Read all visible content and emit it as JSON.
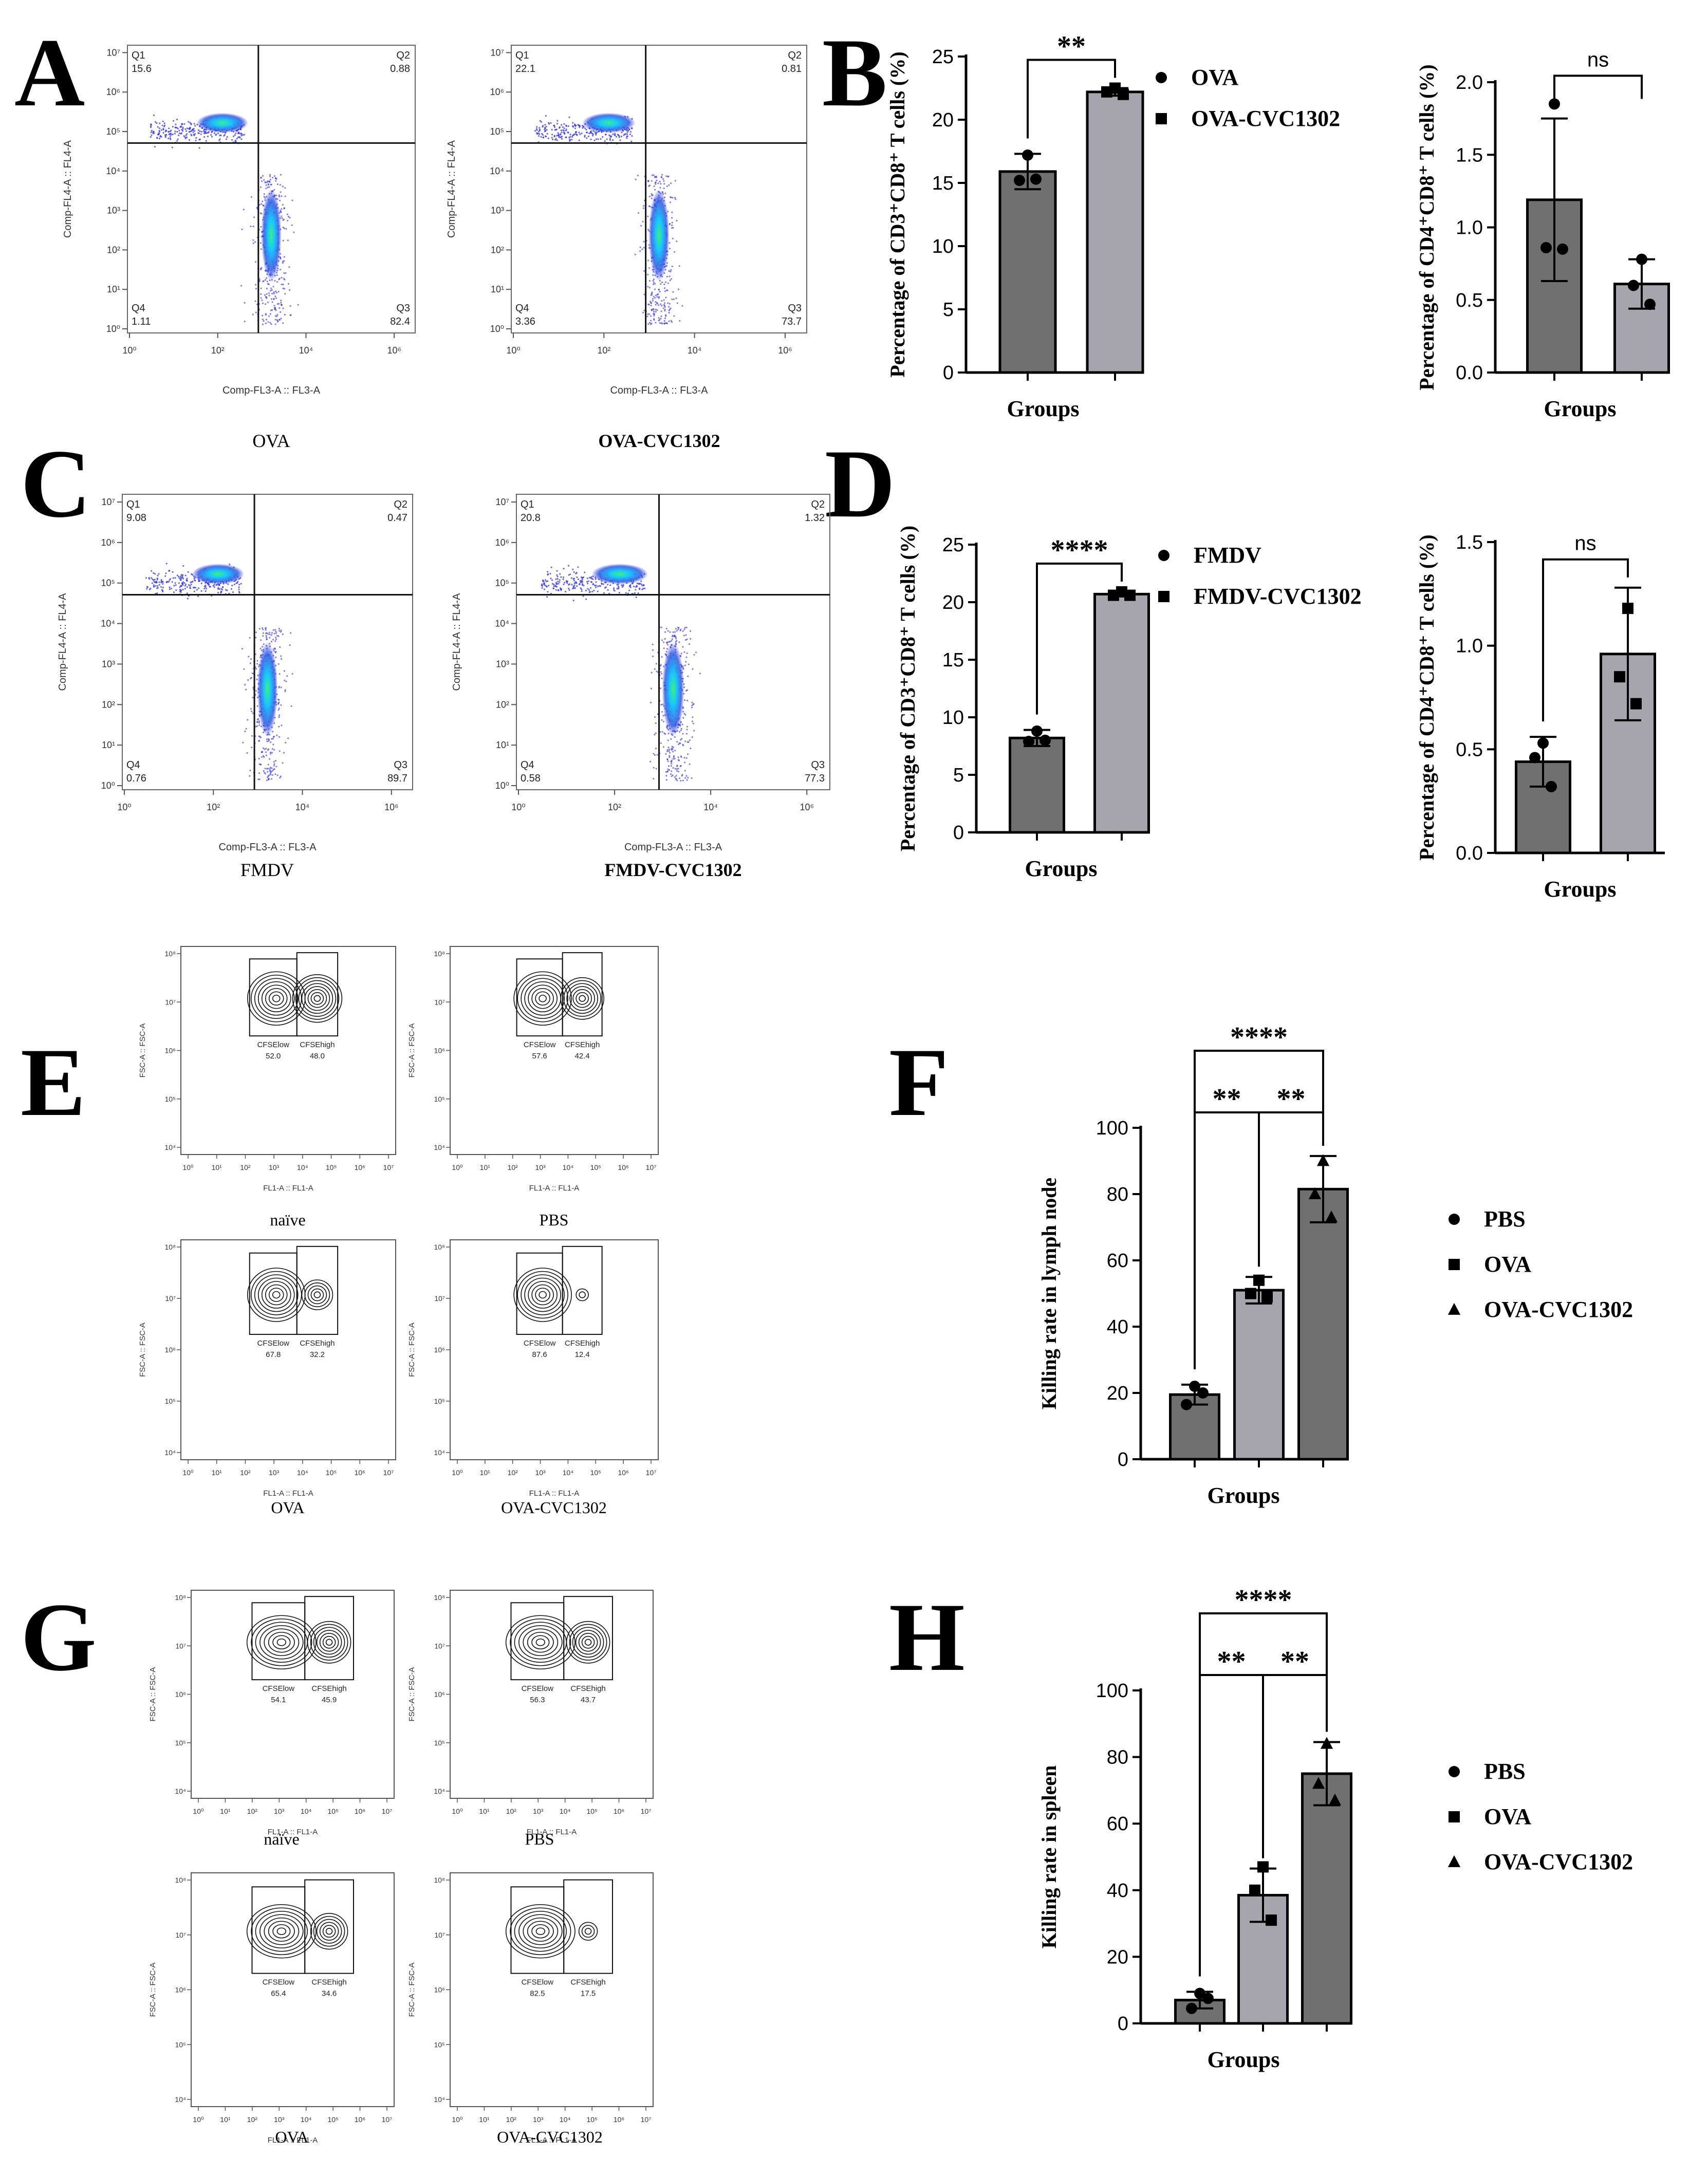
{
  "panel_letters": {
    "A": "A",
    "B": "B",
    "C": "C",
    "D": "D",
    "E": "E",
    "F": "F",
    "G": "G",
    "H": "H"
  },
  "colors": {
    "bar_dark": "#707070",
    "bar_light": "#a6a5ad",
    "text": "#000000",
    "density_low": "#2b2bd6",
    "density_mid": "#19c6ff",
    "density_high": "#2ee07a",
    "contour": "#111111"
  },
  "flow_quadrant": [
    {
      "id": "A1",
      "title": "OVA",
      "xlabel": "Comp-FL3-A :: FL3-A",
      "ylabel": "Comp-FL4-A :: FL4-A",
      "q": {
        "Q1": "15.6",
        "Q2": "0.88",
        "Q3": "82.4",
        "Q4": "1.11"
      },
      "qlabels": {
        "Q1": "Q1",
        "Q2": "Q2",
        "Q3": "Q3",
        "Q4": "Q4"
      },
      "xticks": [
        "10⁰",
        "10²",
        "10⁴",
        "10⁶"
      ],
      "yticks": [
        "10⁰",
        "10¹",
        "10²",
        "10³",
        "10⁴",
        "10⁵",
        "10⁶",
        "10⁷"
      ]
    },
    {
      "id": "A2",
      "title": "OVA-CVC1302",
      "xlabel": "Comp-FL3-A :: FL3-A",
      "ylabel": "Comp-FL4-A :: FL4-A",
      "q": {
        "Q1": "22.1",
        "Q2": "0.81",
        "Q3": "73.7",
        "Q4": "3.36"
      },
      "qlabels": {
        "Q1": "Q1",
        "Q2": "Q2",
        "Q3": "Q3",
        "Q4": "Q4"
      },
      "xticks": [
        "10⁰",
        "10²",
        "10⁴",
        "10⁶"
      ],
      "yticks": [
        "10⁰",
        "10¹",
        "10²",
        "10³",
        "10⁴",
        "10⁵",
        "10⁶",
        "10⁷"
      ]
    },
    {
      "id": "C1",
      "title": "FMDV",
      "xlabel": "Comp-FL3-A :: FL3-A",
      "ylabel": "Comp-FL4-A :: FL4-A",
      "q": {
        "Q1": "9.08",
        "Q2": "0.47",
        "Q3": "89.7",
        "Q4": "0.76"
      },
      "qlabels": {
        "Q1": "Q1",
        "Q2": "Q2",
        "Q3": "Q3",
        "Q4": "Q4"
      },
      "xticks": [
        "10⁰",
        "10²",
        "10⁴",
        "10⁶"
      ],
      "yticks": [
        "10⁰",
        "10¹",
        "10²",
        "10³",
        "10⁴",
        "10⁵",
        "10⁶",
        "10⁷"
      ]
    },
    {
      "id": "C2",
      "title": "FMDV-CVC1302",
      "xlabel": "Comp-FL3-A :: FL3-A",
      "ylabel": "Comp-FL4-A :: FL4-A",
      "q": {
        "Q1": "20.8",
        "Q2": "1.32",
        "Q3": "77.3",
        "Q4": "0.58"
      },
      "qlabels": {
        "Q1": "Q1",
        "Q2": "Q2",
        "Q3": "Q3",
        "Q4": "Q4"
      },
      "xticks": [
        "10⁰",
        "10²",
        "10⁴",
        "10⁶"
      ],
      "yticks": [
        "10⁰",
        "10¹",
        "10²",
        "10³",
        "10⁴",
        "10⁵",
        "10⁶",
        "10⁷"
      ]
    }
  ],
  "flow_cfse": [
    {
      "id": "E1",
      "title": "naïve",
      "xlabel": "FL1-A :: FL1-A",
      "ylabel": "FSC-A :: FSC-A",
      "low_label": "CFSElow",
      "high_label": "CFSEhigh",
      "low": "52.0",
      "high": "48.0"
    },
    {
      "id": "E2",
      "title": "PBS",
      "xlabel": "FL1-A :: FL1-A",
      "ylabel": "FSC-A :: FSC-A",
      "low_label": "CFSElow",
      "high_label": "CFSEhigh",
      "low": "57.6",
      "high": "42.4"
    },
    {
      "id": "E3",
      "title": "OVA",
      "xlabel": "FL1-A :: FL1-A",
      "ylabel": "FSC-A :: FSC-A",
      "low_label": "CFSElow",
      "high_label": "CFSEhigh",
      "low": "67.8",
      "high": "32.2"
    },
    {
      "id": "E4",
      "title": "OVA-CVC1302",
      "xlabel": "FL1-A :: FL1-A",
      "ylabel": "FSC-A :: FSC-A",
      "low_label": "CFSElow",
      "high_label": "CFSEhigh",
      "low": "87.6",
      "high": "12.4"
    },
    {
      "id": "G1",
      "title": "naïve",
      "xlabel": "FL1-A :: FL1-A",
      "ylabel": "FSC-A :: FSC-A",
      "low_label": "CFSElow",
      "high_label": "CFSEhigh",
      "low": "54.1",
      "high": "45.9"
    },
    {
      "id": "G2",
      "title": "PBS",
      "xlabel": "FL1-A :: FL1-A",
      "ylabel": "FSC-A :: FSC-A",
      "low_label": "CFSElow",
      "high_label": "CFSEhigh",
      "low": "56.3",
      "high": "43.7"
    },
    {
      "id": "G3",
      "title": "OVA",
      "xlabel": "FL1-A :: FL1-A",
      "ylabel": "FSC-A :: FSC-A",
      "low_label": "CFSElow",
      "high_label": "CFSEhigh",
      "low": "65.4",
      "high": "34.6"
    },
    {
      "id": "G4",
      "title": "OVA-CVC1302",
      "xlabel": "FL1-A :: FL1-A",
      "ylabel": "FSC-A :: FSC-A",
      "low_label": "CFSElow",
      "high_label": "CFSEhigh",
      "low": "82.5",
      "high": "17.5"
    }
  ],
  "cfse_ticks": {
    "x": [
      "10⁰",
      "10¹",
      "10²",
      "10³",
      "10⁴",
      "10⁵",
      "10⁶",
      "10⁷"
    ],
    "y": [
      "10⁴",
      "10⁵",
      "10⁶",
      "10⁷",
      "10⁸"
    ]
  },
  "chart_data": [
    {
      "id": "B1",
      "type": "bar",
      "title": "",
      "xlabel": "Groups",
      "ylabel": "Percentage of CD3⁺CD8⁺ T cells (%)",
      "ylim": [
        0,
        25
      ],
      "yticks": [
        0,
        5,
        10,
        15,
        20,
        25
      ],
      "yticklabels": [
        "0",
        "5",
        "10",
        "15",
        "20",
        "25"
      ],
      "categories": [
        "OVA",
        "OVA-CVC1302"
      ],
      "values": [
        15.9,
        22.2
      ],
      "errors": [
        1.4,
        0.3
      ],
      "points": [
        [
          17.2,
          15.2,
          15.3
        ],
        [
          22.5,
          22.2,
          22.0
        ]
      ],
      "markers": [
        "circle",
        "square"
      ],
      "annotations": [
        {
          "from": 0,
          "to": 1,
          "text": "**"
        }
      ],
      "legend": [
        "OVA",
        "OVA-CVC1302"
      ]
    },
    {
      "id": "B2",
      "type": "bar",
      "title": "",
      "xlabel": "Groups",
      "ylabel": "Percentage of CD4⁺CD8⁺ T cells (%)",
      "ylim": [
        0,
        2
      ],
      "yticks": [
        0,
        0.5,
        1,
        1.5,
        2
      ],
      "yticklabels": [
        "0.0",
        "0.5",
        "1.0",
        "1.5",
        "2.0"
      ],
      "categories": [
        "OVA",
        "OVA-CVC1302"
      ],
      "values": [
        1.19,
        0.61
      ],
      "errors": [
        0.56,
        0.17
      ],
      "points": [
        [
          1.85,
          0.86,
          0.85
        ],
        [
          0.78,
          0.6,
          0.47
        ]
      ],
      "markers": [
        "circle",
        "circle"
      ],
      "annotations": [
        {
          "from": 0,
          "to": 1,
          "text": "ns"
        }
      ]
    },
    {
      "id": "D1",
      "type": "bar",
      "title": "",
      "xlabel": "Groups",
      "ylabel": "Percentage of CD3⁺CD8⁺ T cells (%)",
      "ylim": [
        0,
        25
      ],
      "yticks": [
        0,
        5,
        10,
        15,
        20,
        25
      ],
      "yticklabels": [
        "0",
        "5",
        "10",
        "15",
        "20",
        "25"
      ],
      "categories": [
        "FMDV",
        "FMDV-CVC1302"
      ],
      "values": [
        8.2,
        20.7
      ],
      "errors": [
        0.7,
        0.2
      ],
      "points": [
        [
          8.8,
          7.9,
          8.0
        ],
        [
          20.9,
          20.6,
          20.6
        ]
      ],
      "markers": [
        "circle",
        "square"
      ],
      "annotations": [
        {
          "from": 0,
          "to": 1,
          "text": "****"
        }
      ],
      "legend": [
        "FMDV",
        "FMDV-CVC1302"
      ]
    },
    {
      "id": "D2",
      "type": "bar",
      "title": "",
      "xlabel": "Groups",
      "ylabel": "Percentage of CD4⁺CD8⁺ T cells (%)",
      "ylim": [
        0,
        1.5
      ],
      "yticks": [
        0,
        0.5,
        1,
        1.5
      ],
      "yticklabels": [
        "0.0",
        "0.5",
        "1.0",
        "1.5"
      ],
      "categories": [
        "FMDV",
        "FMDV-CVC1302"
      ],
      "values": [
        0.44,
        0.96
      ],
      "errors": [
        0.12,
        0.32
      ],
      "points": [
        [
          0.53,
          0.46,
          0.32
        ],
        [
          1.18,
          0.85,
          0.72
        ]
      ],
      "markers": [
        "circle",
        "square"
      ],
      "annotations": [
        {
          "from": 0,
          "to": 1,
          "text": "ns"
        }
      ]
    },
    {
      "id": "F",
      "type": "bar",
      "title": "",
      "xlabel": "Groups",
      "ylabel": "Killing rate in lymph node",
      "ylim": [
        0,
        100
      ],
      "yticks": [
        0,
        20,
        40,
        60,
        80,
        100
      ],
      "yticklabels": [
        "0",
        "20",
        "40",
        "60",
        "80",
        "100"
      ],
      "categories": [
        "PBS",
        "OVA",
        "OVA-CVC1302"
      ],
      "values": [
        19.5,
        51,
        81.5
      ],
      "errors": [
        3,
        4,
        10
      ],
      "points": [
        [
          22,
          16.5,
          20
        ],
        [
          54,
          50,
          49
        ],
        [
          90,
          80,
          73
        ]
      ],
      "markers": [
        "circle",
        "square",
        "triangle"
      ],
      "annotations": [
        {
          "from": 0,
          "to": 1,
          "text": "**"
        },
        {
          "from": 1,
          "to": 2,
          "text": "**"
        },
        {
          "from": 0,
          "to": 2,
          "text": "****"
        }
      ],
      "legend": [
        "PBS",
        "OVA",
        "OVA-CVC1302"
      ]
    },
    {
      "id": "H",
      "type": "bar",
      "title": "",
      "xlabel": "Groups",
      "ylabel": "Killing rate in spleen",
      "ylim": [
        0,
        100
      ],
      "yticks": [
        0,
        20,
        40,
        60,
        80,
        100
      ],
      "yticklabels": [
        "0",
        "20",
        "40",
        "60",
        "80",
        "100"
      ],
      "categories": [
        "PBS",
        "OVA",
        "OVA-CVC1302"
      ],
      "values": [
        7,
        38.5,
        75
      ],
      "errors": [
        2.5,
        8,
        9.5
      ],
      "points": [
        [
          9,
          4.5,
          7.5
        ],
        [
          47,
          40,
          31
        ],
        [
          84,
          72,
          67
        ]
      ],
      "markers": [
        "circle",
        "square",
        "triangle"
      ],
      "annotations": [
        {
          "from": 0,
          "to": 1,
          "text": "**"
        },
        {
          "from": 1,
          "to": 2,
          "text": "**"
        },
        {
          "from": 0,
          "to": 2,
          "text": "****"
        }
      ],
      "legend": [
        "PBS",
        "OVA",
        "OVA-CVC1302"
      ]
    }
  ]
}
